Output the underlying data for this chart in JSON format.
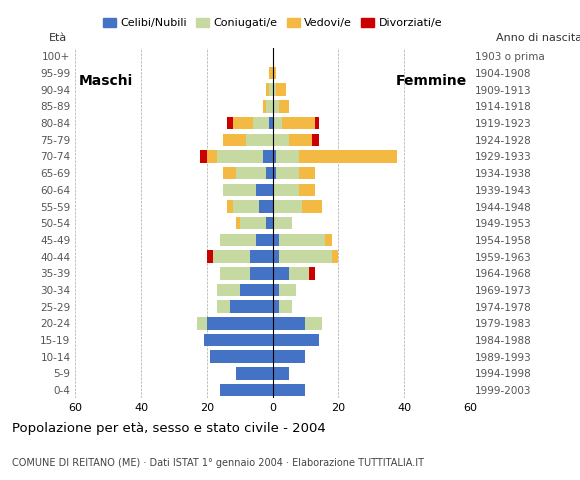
{
  "age_groups": [
    "0-4",
    "5-9",
    "10-14",
    "15-19",
    "20-24",
    "25-29",
    "30-34",
    "35-39",
    "40-44",
    "45-49",
    "50-54",
    "55-59",
    "60-64",
    "65-69",
    "70-74",
    "75-79",
    "80-84",
    "85-89",
    "90-94",
    "95-99",
    "100+"
  ],
  "birth_years": [
    "1999-2003",
    "1994-1998",
    "1989-1993",
    "1984-1988",
    "1979-1983",
    "1974-1978",
    "1969-1973",
    "1964-1968",
    "1959-1963",
    "1954-1958",
    "1949-1953",
    "1944-1948",
    "1939-1943",
    "1934-1938",
    "1929-1933",
    "1924-1928",
    "1919-1923",
    "1914-1918",
    "1909-1913",
    "1904-1908",
    "1903 o prima"
  ],
  "male": {
    "celibe": [
      16,
      11,
      19,
      21,
      20,
      13,
      10,
      7,
      7,
      5,
      2,
      4,
      5,
      2,
      3,
      0,
      1,
      0,
      0,
      0,
      0
    ],
    "coniugato": [
      0,
      0,
      0,
      0,
      3,
      4,
      7,
      9,
      11,
      11,
      8,
      8,
      10,
      9,
      14,
      8,
      5,
      2,
      1,
      0,
      0
    ],
    "vedovo": [
      0,
      0,
      0,
      0,
      0,
      0,
      0,
      0,
      0,
      0,
      1,
      2,
      0,
      4,
      3,
      7,
      6,
      1,
      1,
      1,
      0
    ],
    "divorziato": [
      0,
      0,
      0,
      0,
      0,
      0,
      0,
      0,
      2,
      0,
      0,
      0,
      0,
      0,
      2,
      0,
      2,
      0,
      0,
      0,
      0
    ]
  },
  "female": {
    "nubile": [
      10,
      5,
      10,
      14,
      10,
      2,
      2,
      5,
      2,
      2,
      0,
      0,
      0,
      1,
      1,
      0,
      0,
      0,
      0,
      0,
      0
    ],
    "coniugata": [
      0,
      0,
      0,
      0,
      5,
      4,
      5,
      6,
      16,
      14,
      6,
      9,
      8,
      7,
      7,
      5,
      3,
      2,
      1,
      0,
      0
    ],
    "vedova": [
      0,
      0,
      0,
      0,
      0,
      0,
      0,
      0,
      2,
      2,
      0,
      6,
      5,
      5,
      30,
      7,
      10,
      3,
      3,
      1,
      0
    ],
    "divorziata": [
      0,
      0,
      0,
      0,
      0,
      0,
      0,
      2,
      0,
      0,
      0,
      0,
      0,
      0,
      0,
      2,
      1,
      0,
      0,
      0,
      0
    ]
  },
  "colors": {
    "celibe": "#4472c4",
    "coniugato": "#c5d9a0",
    "vedovo": "#f4b942",
    "divorziato": "#cc0000"
  },
  "title": "Popolazione per età, sesso e stato civile - 2004",
  "subtitle": "COMUNE DI REITANO (ME) · Dati ISTAT 1° gennaio 2004 · Elaborazione TUTTITALIA.IT",
  "label_maschi": "Maschi",
  "label_femmine": "Femmine",
  "ylabel_left": "Età",
  "ylabel_right": "Anno di nascita",
  "xlim": 60,
  "background_color": "#ffffff",
  "legend_labels": [
    "Celibi/Nubili",
    "Coniugati/e",
    "Vedovi/e",
    "Divorziati/e"
  ]
}
